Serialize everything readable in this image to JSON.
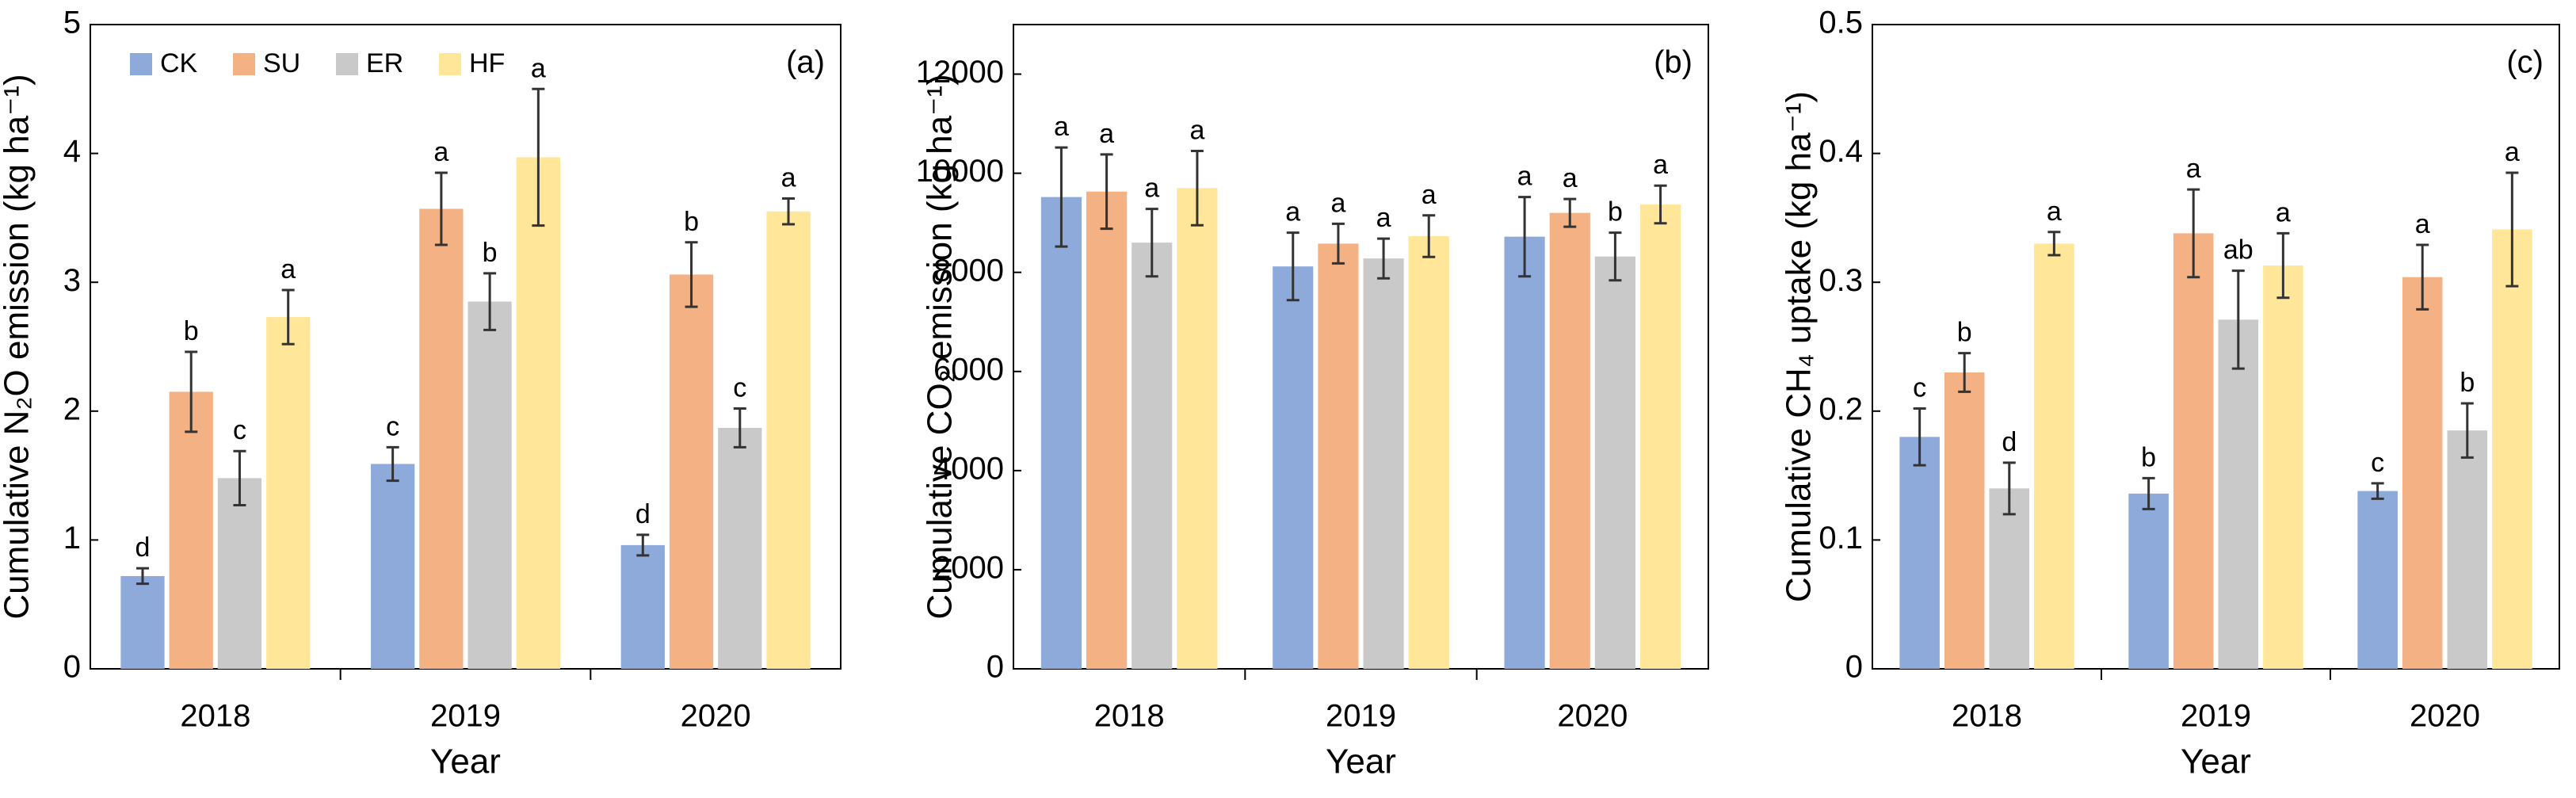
{
  "chart_data": [
    {
      "type": "bar",
      "panel_label": "(a)",
      "x_label": "Year",
      "y_label": "Cumulative N₂O emission (kg ha⁻¹)",
      "categories": [
        "2018",
        "2019",
        "2020"
      ],
      "ylim": [
        0,
        5
      ],
      "yticks": [
        0,
        1,
        2,
        3,
        4,
        5
      ],
      "legend": "upper left",
      "series": [
        {
          "name": "CK",
          "color": "#8eaadb",
          "values": [
            0.72,
            1.59,
            0.96
          ],
          "errors": [
            0.06,
            0.13,
            0.08
          ],
          "letters": [
            "d",
            "c",
            "d"
          ]
        },
        {
          "name": "SU",
          "color": "#f4b183",
          "values": [
            2.15,
            3.57,
            3.06
          ],
          "errors": [
            0.31,
            0.28,
            0.25
          ],
          "letters": [
            "b",
            "a",
            "b"
          ]
        },
        {
          "name": "ER",
          "color": "#c9c9c9",
          "values": [
            1.48,
            2.85,
            1.87
          ],
          "errors": [
            0.21,
            0.22,
            0.15
          ],
          "letters": [
            "c",
            "b",
            "c"
          ]
        },
        {
          "name": "HF",
          "color": "#ffe699",
          "values": [
            2.73,
            3.97,
            3.55
          ],
          "errors": [
            0.21,
            0.53,
            0.1
          ],
          "letters": [
            "a",
            "a",
            "a"
          ]
        }
      ]
    },
    {
      "type": "bar",
      "panel_label": "(b)",
      "x_label": "Year",
      "y_label": "Cumulative CO₂ emission (kg ha⁻¹)",
      "categories": [
        "2018",
        "2019",
        "2020"
      ],
      "ylim": [
        0,
        13000
      ],
      "yticks": [
        0,
        2000,
        4000,
        6000,
        8000,
        10000,
        12000
      ],
      "series": [
        {
          "color": "#8eaadb",
          "values": [
            9520,
            8120,
            8720
          ],
          "errors": [
            1000,
            680,
            800
          ],
          "letters": [
            "a",
            "a",
            "a"
          ]
        },
        {
          "color": "#f4b183",
          "values": [
            9630,
            8580,
            9200
          ],
          "errors": [
            750,
            400,
            280
          ],
          "letters": [
            "a",
            "a",
            "a"
          ]
        },
        {
          "color": "#c9c9c9",
          "values": [
            8600,
            8280,
            8320
          ],
          "errors": [
            680,
            400,
            480
          ],
          "letters": [
            "a",
            "a",
            "b"
          ]
        },
        {
          "color": "#ffe699",
          "values": [
            9700,
            8730,
            9370
          ],
          "errors": [
            750,
            420,
            380
          ],
          "letters": [
            "a",
            "a",
            "a"
          ]
        }
      ]
    },
    {
      "type": "bar",
      "panel_label": "(c)",
      "x_label": "Year",
      "y_label": "Cumulative CH₄ uptake (kg ha⁻¹)",
      "categories": [
        "2018",
        "2019",
        "2020"
      ],
      "ylim": [
        0,
        0.5
      ],
      "yticks": [
        0,
        0.1,
        0.2,
        0.3,
        0.4,
        0.5
      ],
      "series": [
        {
          "color": "#8eaadb",
          "values": [
            0.18,
            0.136,
            0.138
          ],
          "errors": [
            0.022,
            0.012,
            0.006
          ],
          "letters": [
            "c",
            "b",
            "c"
          ]
        },
        {
          "color": "#f4b183",
          "values": [
            0.23,
            0.338,
            0.304
          ],
          "errors": [
            0.015,
            0.034,
            0.025
          ],
          "letters": [
            "b",
            "a",
            "a"
          ]
        },
        {
          "color": "#c9c9c9",
          "values": [
            0.14,
            0.271,
            0.185
          ],
          "errors": [
            0.02,
            0.038,
            0.021
          ],
          "letters": [
            "d",
            "ab",
            "b"
          ]
        },
        {
          "color": "#ffe699",
          "values": [
            0.33,
            0.313,
            0.341
          ],
          "errors": [
            0.009,
            0.025,
            0.044
          ],
          "letters": [
            "a",
            "a",
            "a"
          ]
        }
      ]
    }
  ]
}
